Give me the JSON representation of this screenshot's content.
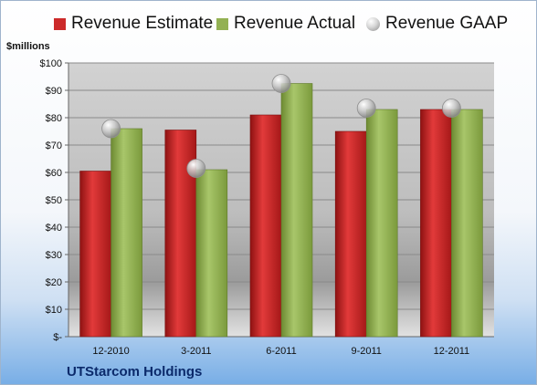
{
  "chart_data": {
    "type": "bar",
    "categories": [
      "12-2010",
      "3-2011",
      "6-2011",
      "9-2011",
      "12-2011"
    ],
    "series": [
      {
        "name": "Revenue Estimate",
        "type": "bar",
        "color": "#cc2a2a",
        "values": [
          60.5,
          75.5,
          81,
          75,
          83
        ]
      },
      {
        "name": "Revenue Actual",
        "type": "bar",
        "color": "#93b153",
        "values": [
          76,
          61,
          92.5,
          83,
          83
        ]
      },
      {
        "name": "Revenue GAAP",
        "type": "scatter",
        "color": "#bdbdbd",
        "values": [
          76,
          61.5,
          92.5,
          83.5,
          83.5
        ]
      }
    ],
    "ylabel": "$millions",
    "ylim": [
      0,
      100
    ],
    "yticks": [
      0,
      10,
      20,
      30,
      40,
      50,
      60,
      70,
      80,
      90,
      100
    ],
    "ytick_labels": [
      "$-",
      "$10",
      "$20",
      "$30",
      "$40",
      "$50",
      "$60",
      "$70",
      "$80",
      "$90",
      "$100"
    ],
    "grid": true,
    "legend": "top"
  },
  "footer": {
    "company": "UTStarcom Holdings"
  }
}
